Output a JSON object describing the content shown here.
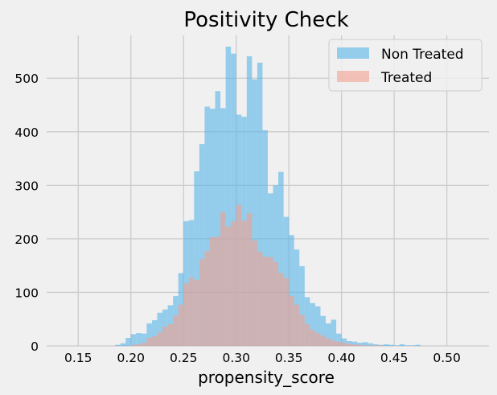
{
  "chart_data": {
    "type": "histogram",
    "title": "Positivity Check",
    "xlabel": "propensity_score",
    "ylabel": "",
    "xlim": [
      0.12,
      0.54
    ],
    "ylim": [
      0,
      580
    ],
    "xticks": [
      0.15,
      0.2,
      0.25,
      0.3,
      0.35,
      0.4,
      0.45,
      0.5
    ],
    "xtick_labels": [
      "0.15",
      "0.20",
      "0.25",
      "0.30",
      "0.35",
      "0.40",
      "0.45",
      "0.50"
    ],
    "yticks": [
      0,
      100,
      200,
      300,
      400,
      500
    ],
    "ytick_labels": [
      "0",
      "100",
      "200",
      "300",
      "400",
      "500"
    ],
    "grid": true,
    "legend_position": "top-right",
    "colors": {
      "non_treated": "#56b4e9",
      "treated": "#f4a090",
      "background": "#f0f0f0",
      "grid": "#cbcbcb"
    },
    "series": [
      {
        "name": "Non Treated",
        "bin_width": 0.005,
        "bins_start": [
          0.185,
          0.19,
          0.195,
          0.2,
          0.205,
          0.21,
          0.215,
          0.22,
          0.225,
          0.23,
          0.235,
          0.24,
          0.245,
          0.25,
          0.255,
          0.26,
          0.265,
          0.27,
          0.275,
          0.28,
          0.285,
          0.29,
          0.295,
          0.3,
          0.305,
          0.31,
          0.315,
          0.32,
          0.325,
          0.33,
          0.335,
          0.34,
          0.345,
          0.35,
          0.355,
          0.36,
          0.365,
          0.37,
          0.375,
          0.38,
          0.385,
          0.39,
          0.395,
          0.4,
          0.405,
          0.41,
          0.415,
          0.42,
          0.425,
          0.43,
          0.435,
          0.44,
          0.445,
          0.45,
          0.455,
          0.46,
          0.465,
          0.47
        ],
        "values": [
          2,
          5,
          15,
          22,
          24,
          23,
          42,
          48,
          62,
          68,
          76,
          93,
          136,
          233,
          235,
          326,
          377,
          447,
          443,
          476,
          444,
          559,
          546,
          432,
          428,
          541,
          498,
          529,
          403,
          285,
          300,
          325,
          241,
          207,
          180,
          149,
          91,
          80,
          74,
          56,
          42,
          49,
          23,
          14,
          9,
          8,
          6,
          7,
          5,
          3,
          2,
          3,
          2,
          1,
          3,
          1,
          1,
          2
        ]
      },
      {
        "name": "Treated",
        "bin_width": 0.005,
        "bins_start": [
          0.2,
          0.205,
          0.21,
          0.215,
          0.22,
          0.225,
          0.23,
          0.235,
          0.24,
          0.245,
          0.25,
          0.255,
          0.26,
          0.265,
          0.27,
          0.275,
          0.28,
          0.285,
          0.29,
          0.295,
          0.3,
          0.305,
          0.31,
          0.315,
          0.32,
          0.325,
          0.33,
          0.335,
          0.34,
          0.345,
          0.35,
          0.355,
          0.36,
          0.365,
          0.37,
          0.375,
          0.38,
          0.385,
          0.39,
          0.395,
          0.4,
          0.405,
          0.41,
          0.415,
          0.42,
          0.425,
          0.43,
          0.435
        ],
        "values": [
          2,
          3,
          6,
          15,
          18,
          25,
          36,
          41,
          57,
          77,
          117,
          128,
          123,
          162,
          177,
          203,
          204,
          250,
          223,
          233,
          263,
          234,
          248,
          197,
          176,
          167,
          166,
          157,
          136,
          127,
          93,
          77,
          58,
          41,
          30,
          24,
          19,
          14,
          10,
          8,
          6,
          4,
          3,
          2,
          1,
          1,
          1,
          1
        ]
      }
    ]
  }
}
